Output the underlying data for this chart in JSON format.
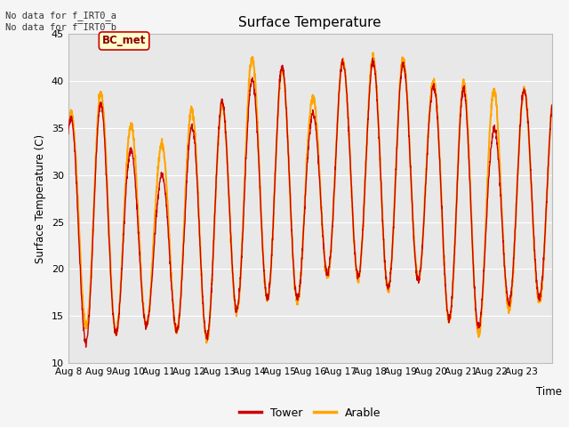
{
  "title": "Surface Temperature",
  "ylabel": "Surface Temperature (C)",
  "xlabel": "Time",
  "ylim": [
    10,
    45
  ],
  "note_line1": "No data for f_IRT0_a",
  "note_line2": "No data for f̅IRT0̅b",
  "legend_label1": "Tower",
  "legend_label2": "Arable",
  "legend_color1": "#cc0000",
  "legend_color2": "#ffa500",
  "bc_met_label": "BC_met",
  "bc_met_facecolor": "#ffffcc",
  "bc_met_edgecolor": "#cc0000",
  "bc_met_textcolor": "#8b0000",
  "yticks": [
    10,
    15,
    20,
    25,
    30,
    35,
    40,
    45
  ],
  "xtick_labels": [
    "Aug 8",
    "Aug 9",
    "Aug 10",
    "Aug 11",
    "Aug 12",
    "Aug 13",
    "Aug 14",
    "Aug 15",
    "Aug 16",
    "Aug 17",
    "Aug 18",
    "Aug 19",
    "Aug 20",
    "Aug 21",
    "Aug 22",
    "Aug 23"
  ],
  "n_days": 16,
  "plot_bg": "#e8e8e8",
  "fig_bg": "#f5f5f5",
  "grid_color": "#ffffff",
  "tower_color": "#cc0000",
  "arable_color": "#ffa500",
  "tower_lw": 1.0,
  "arable_lw": 1.5
}
